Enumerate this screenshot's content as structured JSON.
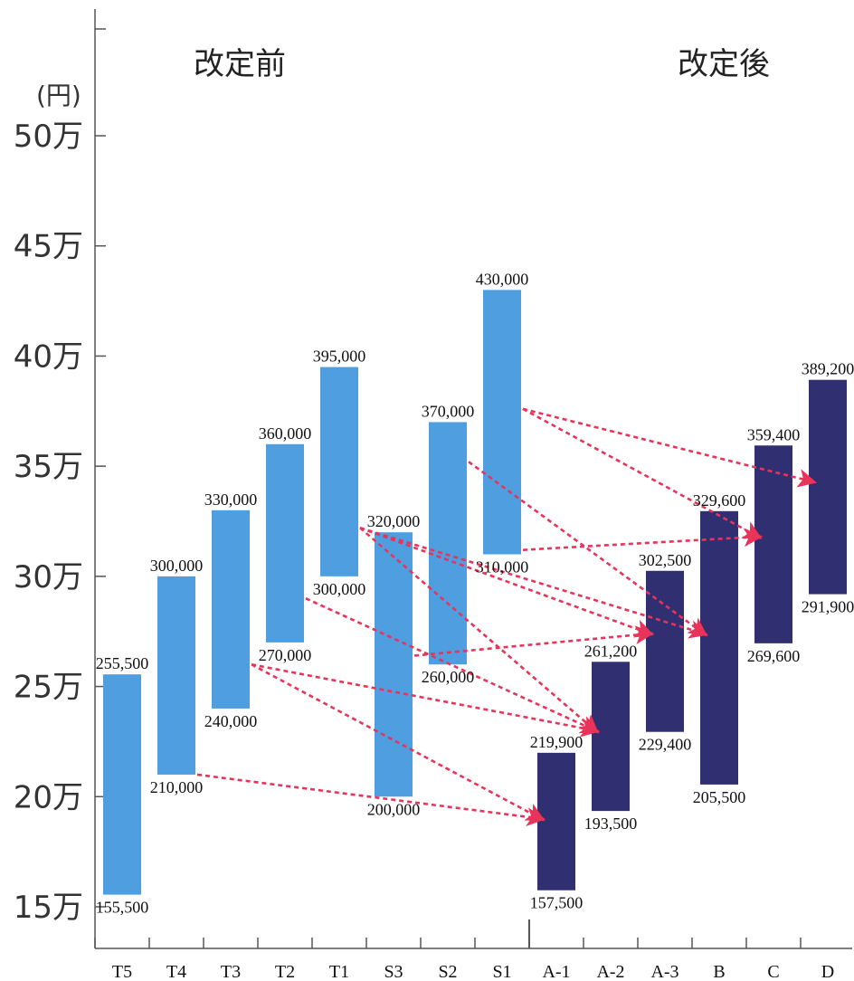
{
  "chart_data": {
    "type": "floating-bar",
    "group_titles": {
      "before": "改定前",
      "after": "改定後"
    },
    "unit": "(円)",
    "yticks": [
      {
        "value": 150000,
        "label": "15万"
      },
      {
        "value": 200000,
        "label": "20万"
      },
      {
        "value": 250000,
        "label": "25万"
      },
      {
        "value": 300000,
        "label": "30万"
      },
      {
        "value": 350000,
        "label": "35万"
      },
      {
        "value": 400000,
        "label": "40万"
      },
      {
        "value": 450000,
        "label": "45万"
      },
      {
        "value": 500000,
        "label": "50万"
      }
    ],
    "ylim": [
      150000,
      500000
    ],
    "grid": false,
    "colors": {
      "before": "#4e9ee0",
      "after": "#2f2f72",
      "arrow": "#e8345a"
    },
    "bars": [
      {
        "category": "T5",
        "group": "before",
        "low": 155500,
        "high": 255500,
        "low_label": "155,500",
        "high_label": "255,500"
      },
      {
        "category": "T4",
        "group": "before",
        "low": 210000,
        "high": 300000,
        "low_label": "210,000",
        "high_label": "300,000"
      },
      {
        "category": "T3",
        "group": "before",
        "low": 240000,
        "high": 330000,
        "low_label": "240,000",
        "high_label": "330,000"
      },
      {
        "category": "T2",
        "group": "before",
        "low": 270000,
        "high": 360000,
        "low_label": "270,000",
        "high_label": "360,000"
      },
      {
        "category": "T1",
        "group": "before",
        "low": 300000,
        "high": 395000,
        "low_label": "300,000",
        "high_label": "395,000"
      },
      {
        "category": "S3",
        "group": "before",
        "low": 200000,
        "high": 320000,
        "low_label": "200,000",
        "high_label": "320,000"
      },
      {
        "category": "S2",
        "group": "before",
        "low": 260000,
        "high": 370000,
        "low_label": "260,000",
        "high_label": "370,000"
      },
      {
        "category": "S1",
        "group": "before",
        "low": 310000,
        "high": 430000,
        "low_label": "310,000",
        "high_label": "430,000"
      },
      {
        "category": "A-1",
        "group": "after",
        "low": 157500,
        "high": 219900,
        "low_label": "157,500",
        "high_label": "219,900"
      },
      {
        "category": "A-2",
        "group": "after",
        "low": 193500,
        "high": 261200,
        "low_label": "193,500",
        "high_label": "261,200"
      },
      {
        "category": "A-3",
        "group": "after",
        "low": 229400,
        "high": 302500,
        "low_label": "229,400",
        "high_label": "302,500"
      },
      {
        "category": "B",
        "group": "after",
        "low": 205500,
        "high": 329600,
        "low_label": "205,500",
        "high_label": "329,600"
      },
      {
        "category": "C",
        "group": "after",
        "low": 269600,
        "high": 359400,
        "low_label": "269,600",
        "high_label": "359,400"
      },
      {
        "category": "D",
        "group": "after",
        "low": 291900,
        "high": 389200,
        "low_label": "291,900",
        "high_label": "389,200"
      }
    ],
    "arrows": [
      {
        "from": "T4",
        "from_value": 210000,
        "to": "A-1",
        "to_value": 190000
      },
      {
        "from": "T3",
        "from_value": 260000,
        "to": "A-1",
        "to_value": 190000
      },
      {
        "from": "T3",
        "from_value": 260000,
        "to": "A-2",
        "to_value": 230000
      },
      {
        "from": "T2",
        "from_value": 290000,
        "to": "A-2",
        "to_value": 230000
      },
      {
        "from": "T1",
        "from_value": 322000,
        "to": "A-2",
        "to_value": 230000
      },
      {
        "from": "T1",
        "from_value": 322000,
        "to": "A-3",
        "to_value": 274000
      },
      {
        "from": "T1",
        "from_value": 322000,
        "to": "B",
        "to_value": 274000
      },
      {
        "from": "S3",
        "from_value": 264000,
        "to": "A-3",
        "to_value": 274000
      },
      {
        "from": "S2",
        "from_value": 352000,
        "to": "B",
        "to_value": 274000
      },
      {
        "from": "S1",
        "from_value": 312000,
        "to": "C",
        "to_value": 318000
      },
      {
        "from": "S1",
        "from_value": 376000,
        "to": "C",
        "to_value": 318000
      },
      {
        "from": "S1",
        "from_value": 376000,
        "to": "D",
        "to_value": 343000
      }
    ]
  }
}
